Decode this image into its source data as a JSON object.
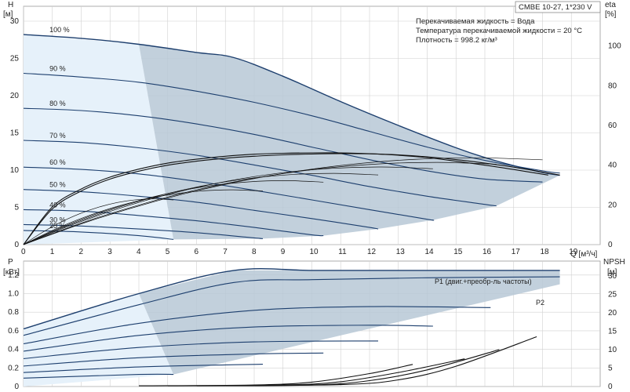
{
  "header": {
    "model": "CMBE 10-27, 1*230 V",
    "info_lines": [
      "Перекачиваемая жидкость = Вода",
      "Температура перекачиваемой жидкости = 20 °C",
      "Плотность = 998.2 кг/м³"
    ]
  },
  "chart_data": [
    {
      "type": "line",
      "name": "head-curves",
      "y_label": "H",
      "y_unit": "[м]",
      "y2_label": "eta",
      "y2_unit": "[%]",
      "x_label": "Q [м³/ч]",
      "xlim": [
        0,
        20
      ],
      "ylim": [
        0,
        32
      ],
      "y2lim": [
        0,
        120
      ],
      "x_ticks": [
        0,
        1,
        2,
        3,
        4,
        5,
        6,
        7,
        8,
        9,
        10,
        11,
        12,
        13,
        14,
        15,
        16,
        17,
        18,
        19
      ],
      "y_ticks": [
        0,
        5,
        10,
        15,
        20,
        25,
        30
      ],
      "y2_ticks": [
        0,
        20,
        40,
        60,
        80,
        100
      ],
      "grid": true,
      "speed_labels": [
        {
          "label": "100 %",
          "h": 28.2
        },
        {
          "label": "90 %",
          "h": 23.0
        },
        {
          "label": "80 %",
          "h": 18.3
        },
        {
          "label": "70 %",
          "h": 14.0
        },
        {
          "label": "60 %",
          "h": 10.4
        },
        {
          "label": "50 %",
          "h": 7.4
        },
        {
          "label": "40 %",
          "h": 4.7
        },
        {
          "label": "30 %",
          "h": 2.7
        },
        {
          "label": "25 %",
          "h": 1.9
        }
      ],
      "head_series": [
        {
          "speed": "100 %",
          "x": [
            0,
            2,
            4,
            6,
            7.3,
            9,
            11,
            13,
            15,
            16,
            17,
            18,
            18.6
          ],
          "y": [
            28.2,
            27.7,
            26.9,
            25.8,
            25.1,
            22.6,
            19.2,
            16.0,
            13.0,
            11.7,
            10.6,
            9.7,
            9.3
          ]
        },
        {
          "speed": "90 %",
          "x": [
            0,
            2,
            4,
            6,
            8,
            10,
            12,
            14,
            16,
            18,
            18.6
          ],
          "y": [
            23.0,
            22.5,
            21.8,
            20.6,
            19.1,
            17.3,
            15.2,
            13.1,
            11.3,
            9.9,
            9.6
          ]
        },
        {
          "speed": "80 %",
          "x": [
            0,
            2,
            4,
            6,
            8,
            10,
            12,
            14,
            16,
            18
          ],
          "y": [
            18.3,
            18.0,
            17.3,
            16.2,
            14.8,
            13.1,
            11.4,
            9.9,
            8.8,
            8.4
          ]
        },
        {
          "speed": "70 %",
          "x": [
            0,
            2,
            4,
            6,
            8,
            10,
            12,
            14,
            16,
            16.4
          ],
          "y": [
            14.0,
            13.7,
            13.0,
            12.0,
            10.7,
            9.3,
            7.8,
            6.5,
            5.4,
            5.2
          ]
        },
        {
          "speed": "60 %",
          "x": [
            0,
            2,
            4,
            6,
            8,
            10,
            12,
            14,
            14.2
          ],
          "y": [
            10.4,
            10.1,
            9.5,
            8.5,
            7.3,
            6.0,
            4.7,
            3.4,
            3.3
          ]
        },
        {
          "speed": "50 %",
          "x": [
            0,
            2,
            4,
            6,
            8,
            10,
            12,
            12.3
          ],
          "y": [
            7.4,
            7.1,
            6.5,
            5.7,
            4.6,
            3.5,
            2.3,
            2.1
          ]
        },
        {
          "speed": "40 %",
          "x": [
            0,
            2,
            4,
            6,
            8,
            10,
            10.4
          ],
          "y": [
            4.7,
            4.5,
            3.9,
            3.2,
            2.3,
            1.3,
            1.2
          ]
        },
        {
          "speed": "30 %",
          "x": [
            0,
            2,
            4,
            6,
            8,
            8.3
          ],
          "y": [
            2.7,
            2.5,
            2.1,
            1.6,
            0.9,
            0.8
          ]
        },
        {
          "speed": "25 %",
          "x": [
            0,
            2,
            4,
            5.2
          ],
          "y": [
            1.9,
            1.7,
            1.2,
            0.7
          ]
        }
      ],
      "eta_series": [
        {
          "x": [
            0,
            1,
            2,
            3,
            4,
            5,
            6,
            7,
            8,
            9,
            10,
            11,
            12,
            13,
            14,
            15,
            16,
            17,
            18,
            18.6
          ],
          "y": [
            0,
            18,
            27,
            33,
            37,
            40,
            42,
            43.5,
            44.5,
            45.2,
            45.6,
            45.8,
            45.7,
            45.2,
            44.2,
            42.8,
            41.0,
            39.0,
            36.5,
            35
          ]
        },
        {
          "x": [
            0,
            1,
            2,
            3,
            4,
            5,
            6,
            7,
            8,
            9,
            10,
            11,
            12,
            13,
            14,
            15,
            16,
            17,
            18.2
          ],
          "y": [
            0,
            19,
            28,
            34,
            38,
            41,
            43,
            44.5,
            45.5,
            46,
            46.2,
            46.2,
            45.8,
            45.0,
            43.8,
            42.0,
            40.0,
            37.8,
            35
          ]
        }
      ],
      "efficiency_limit": 36
    },
    {
      "type": "line",
      "name": "power-npsh-curves",
      "y_label": "P",
      "y_unit": "[кВт]",
      "y2_label": "NPSH",
      "y2_unit": "[м]",
      "xlim": [
        0,
        20
      ],
      "ylim": [
        0,
        1.35
      ],
      "y2lim": [
        0,
        34
      ],
      "y_ticks": [
        0,
        0.2,
        0.4,
        0.6,
        0.8,
        1.0,
        1.2
      ],
      "y2_ticks": [
        0,
        5,
        10,
        15,
        20,
        25,
        30
      ],
      "series_labels": [
        "P1 (двиг.+преобр-ль частоты)",
        "P2"
      ],
      "p1_series": [
        {
          "speed": "100 %",
          "x": [
            0,
            4,
            7.3,
            10,
            13,
            16,
            18.6
          ],
          "y": [
            0.62,
            1.0,
            1.25,
            1.25,
            1.25,
            1.25,
            1.25
          ]
        },
        {
          "speed": "90 %",
          "x": [
            0,
            4,
            7.3,
            10,
            14,
            18.6
          ],
          "y": [
            0.55,
            0.88,
            1.12,
            1.15,
            1.17,
            1.18
          ]
        },
        {
          "speed": "80 %",
          "x": [
            0,
            4,
            8,
            12,
            16.2
          ],
          "y": [
            0.46,
            0.68,
            0.82,
            0.86,
            0.85
          ]
        },
        {
          "speed": "70 %",
          "x": [
            0,
            4,
            8,
            12,
            14.2
          ],
          "y": [
            0.38,
            0.55,
            0.64,
            0.66,
            0.65
          ]
        },
        {
          "speed": "60 %",
          "x": [
            0,
            4,
            8,
            12.3
          ],
          "y": [
            0.3,
            0.42,
            0.48,
            0.49
          ]
        },
        {
          "speed": "50 %",
          "x": [
            0,
            4,
            8,
            10.4
          ],
          "y": [
            0.22,
            0.31,
            0.35,
            0.36
          ]
        },
        {
          "speed": "40 %",
          "x": [
            0,
            4,
            8.3
          ],
          "y": [
            0.15,
            0.21,
            0.24
          ]
        },
        {
          "speed": "30 %",
          "x": [
            0,
            4,
            5.2
          ],
          "y": [
            0.09,
            0.13,
            0.13
          ]
        }
      ],
      "npsh_series": [
        {
          "x": [
            4,
            8,
            10,
            12,
            13.5
          ],
          "y": [
            0.2,
            0.4,
            1.2,
            3.5,
            6.0
          ]
        },
        {
          "x": [
            5,
            9,
            11,
            13,
            15.3
          ],
          "y": [
            0.2,
            0.4,
            1.3,
            3.8,
            7.5
          ]
        },
        {
          "x": [
            6,
            10,
            12,
            14,
            16.5
          ],
          "y": [
            0.2,
            0.4,
            1.6,
            4.5,
            10.0
          ]
        },
        {
          "x": [
            7,
            11,
            13,
            15,
            17.8
          ],
          "y": [
            0.3,
            0.5,
            1.8,
            5.5,
            13.5
          ]
        }
      ]
    }
  ],
  "colors": {
    "curve_dark": "#1d3f6e",
    "region_fill": "#b7c8d6",
    "region_light": "#e6f1fa",
    "grid": "#d0d0d0",
    "eta": "#111111"
  }
}
